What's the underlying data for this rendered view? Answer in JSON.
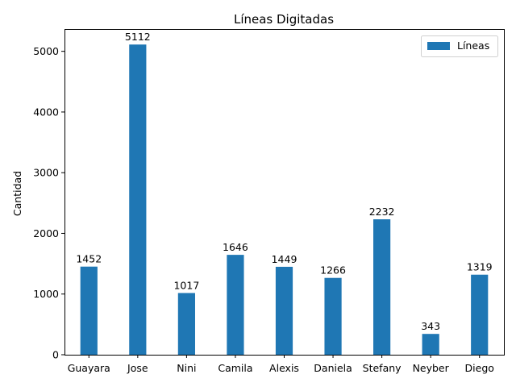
{
  "chart_data": {
    "type": "bar",
    "title": "Líneas Digitadas",
    "xlabel": "",
    "ylabel": "Cantidad",
    "categories": [
      "Guayara",
      "Jose",
      "Nini",
      "Camila",
      "Alexis",
      "Daniela",
      "Stefany",
      "Neyber",
      "Diego"
    ],
    "series": [
      {
        "name": "Líneas",
        "color": "#1f77b4",
        "values": [
          1452,
          5112,
          1017,
          1646,
          1449,
          1266,
          2232,
          343,
          1319
        ]
      }
    ],
    "data_labels": [
      "1452",
      "5112",
      "1017",
      "1646",
      "1449",
      "1266",
      "2232",
      "343",
      "1319"
    ],
    "ylim": [
      0,
      5367.6
    ],
    "yticks": [
      0,
      1000,
      2000,
      3000,
      4000,
      5000
    ],
    "ytick_labels": [
      "0",
      "1000",
      "2000",
      "3000",
      "4000",
      "5000"
    ],
    "grid": false,
    "legend_position": "top-right"
  }
}
